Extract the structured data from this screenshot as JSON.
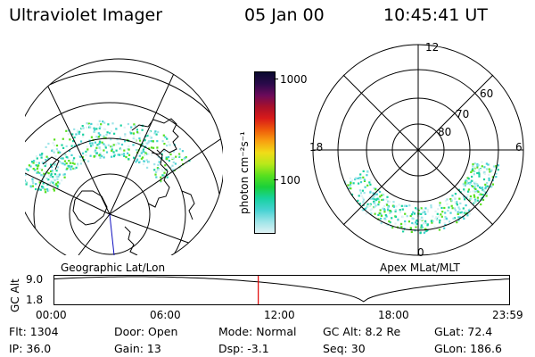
{
  "header": {
    "instrument": "Ultraviolet Imager",
    "date": "05 Jan 00",
    "time": "10:45:41 UT"
  },
  "colorbar": {
    "unit_label": "photon cm⁻²s⁻¹",
    "tick_labels": [
      "1000",
      "100"
    ],
    "colors": [
      "#0a0a30",
      "#2a0a4a",
      "#6a0a5a",
      "#a8102a",
      "#d81a1a",
      "#ee5a0a",
      "#f8a010",
      "#f0dc18",
      "#b8e81a",
      "#58e01e",
      "#1ad03a",
      "#18d2a0",
      "#46d2d2",
      "#9ce4e8",
      "#dff2f4"
    ]
  },
  "left_map": {
    "caption": "Geographic Lat/Lon"
  },
  "right_map": {
    "caption": "Apex MLat/MLT",
    "lat_labels": [
      "60",
      "70",
      "80"
    ],
    "mlt_labels": [
      "12",
      "18",
      "6",
      "0"
    ]
  },
  "altitude_plot": {
    "ylabel": "GC Alt",
    "ytick_labels": [
      "9.0",
      "1.8"
    ],
    "xtick_labels": [
      "00:00",
      "06:00",
      "12:00",
      "18:00",
      "23:59"
    ],
    "current_marker_hour": 10.76,
    "marker_color": "#e00000"
  },
  "status": {
    "flt": "Flt: 1304",
    "ip": "IP: 36.0",
    "door": "Door: Open",
    "gain": "Gain: 13",
    "mode": "Mode: Normal",
    "dsp": "Dsp:   -3.1",
    "gc_alt": "GC Alt: 8.2 Re",
    "seq": "Seq: 30",
    "glat": "GLat:  72.4",
    "glon": "GLon: 186.6"
  }
}
